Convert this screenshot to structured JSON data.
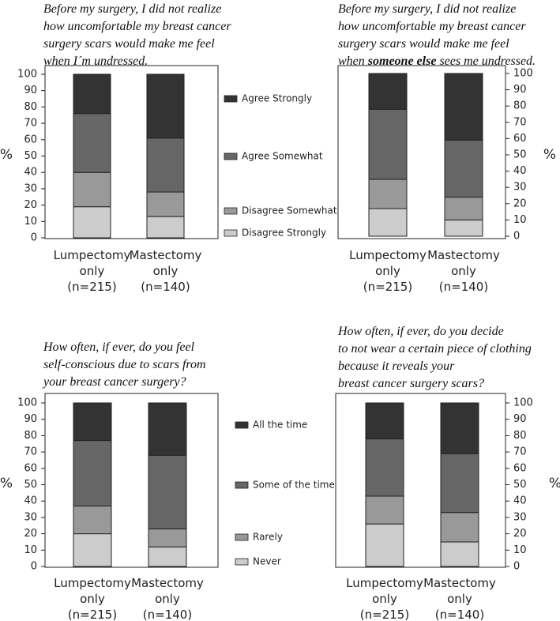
{
  "chart_data": [
    {
      "type": "stacked_bar",
      "title": [
        "Before my surgery, I did not realize",
        "how uncomfortable my breast cancer",
        "surgery scars would make me feel",
        "when I´m undressed."
      ],
      "y_label": "%",
      "categories": [
        [
          "Lumpectomy",
          "only",
          "(n=215)"
        ],
        [
          "Mastectomy",
          "only",
          "(n=140)"
        ]
      ],
      "series": [
        {
          "name": "Disagree Strongly",
          "color": "#cccccc",
          "values": [
            19,
            13
          ]
        },
        {
          "name": "Disagree Somewhat",
          "color": "#999999",
          "values": [
            21,
            15
          ]
        },
        {
          "name": "Agree Somewhat",
          "color": "#666666",
          "values": [
            36,
            33
          ]
        },
        {
          "name": "Agree Strongly",
          "color": "#333333",
          "values": [
            24,
            39
          ]
        }
      ],
      "ylim": [
        0,
        100
      ],
      "yticks": [
        0,
        10,
        20,
        30,
        40,
        50,
        60,
        70,
        80,
        90,
        100
      ],
      "y_axis_side": "left",
      "legend": "right"
    },
    {
      "type": "stacked_bar",
      "title": [
        "Before my surgery, I did not realize",
        "how uncomfortable my breast cancer",
        "surgery scars would make me feel",
        [
          {
            "text": "when "
          },
          {
            "text": "someone else",
            "bold": true
          },
          {
            "text": " sees me undressed."
          }
        ]
      ],
      "y_label": "%",
      "categories": [
        [
          "Lumpectomy",
          "only",
          "(n=215)"
        ],
        [
          "Mastectomy",
          "only",
          "(n=140)"
        ]
      ],
      "series": [
        {
          "color": "#cccccc",
          "values": [
            17,
            10
          ]
        },
        {
          "color": "#999999",
          "values": [
            18,
            14
          ]
        },
        {
          "color": "#666666",
          "values": [
            43,
            35
          ]
        },
        {
          "color": "#333333",
          "values": [
            22,
            41
          ]
        }
      ],
      "ylim": [
        0,
        100
      ],
      "yticks": [
        0,
        10,
        20,
        30,
        40,
        50,
        60,
        70,
        80,
        90,
        100
      ],
      "y_axis_side": "right"
    },
    {
      "type": "stacked_bar",
      "title": [
        "How often, if ever, do you feel",
        "self-conscious due to scars from",
        "your breast cancer surgery?"
      ],
      "y_label": "%",
      "categories": [
        [
          "Lumpectomy",
          "only",
          "(n=215)"
        ],
        [
          "Mastectomy",
          "only",
          "(n=140)"
        ]
      ],
      "series": [
        {
          "name": "Never",
          "color": "#cccccc",
          "values": [
            20,
            12
          ]
        },
        {
          "name": "Rarely",
          "color": "#999999",
          "values": [
            17,
            11
          ]
        },
        {
          "name": "Some of the time",
          "color": "#666666",
          "values": [
            40,
            45
          ]
        },
        {
          "name": "All the time",
          "color": "#333333",
          "values": [
            23,
            32
          ]
        }
      ],
      "ylim": [
        0,
        100
      ],
      "yticks": [
        0,
        10,
        20,
        30,
        40,
        50,
        60,
        70,
        80,
        90,
        100
      ],
      "y_axis_side": "left",
      "legend": "right"
    },
    {
      "type": "stacked_bar",
      "title": [
        "How often, if ever, do you decide",
        "to not wear a certain piece of clothing",
        "because it reveals your",
        "breast cancer surgery scars?"
      ],
      "y_label": "%",
      "categories": [
        [
          "Lumpectomy",
          "only",
          "(n=215)"
        ],
        [
          "Mastectomy",
          "only",
          "(n=140)"
        ]
      ],
      "series": [
        {
          "color": "#cccccc",
          "values": [
            26,
            15
          ]
        },
        {
          "color": "#999999",
          "values": [
            17,
            18
          ]
        },
        {
          "color": "#666666",
          "values": [
            35,
            36
          ]
        },
        {
          "color": "#333333",
          "values": [
            22,
            31
          ]
        }
      ],
      "ylim": [
        0,
        100
      ],
      "yticks": [
        0,
        10,
        20,
        30,
        40,
        50,
        60,
        70,
        80,
        90,
        100
      ],
      "y_axis_side": "right"
    }
  ]
}
